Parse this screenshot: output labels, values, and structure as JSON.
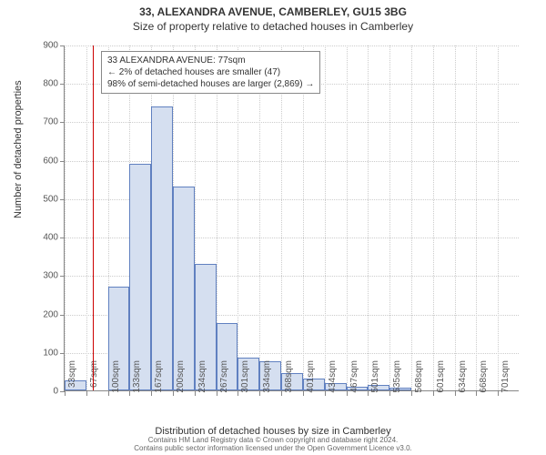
{
  "title": {
    "main": "33, ALEXANDRA AVENUE, CAMBERLEY, GU15 3BG",
    "sub": "Size of property relative to detached houses in Camberley"
  },
  "chart": {
    "type": "histogram",
    "ylim": [
      0,
      900
    ],
    "ytick_step": 100,
    "yticks": [
      0,
      100,
      200,
      300,
      400,
      500,
      600,
      700,
      800,
      900
    ],
    "xticks": [
      "33sqm",
      "67sqm",
      "100sqm",
      "133sqm",
      "167sqm",
      "200sqm",
      "234sqm",
      "267sqm",
      "301sqm",
      "334sqm",
      "368sqm",
      "401sqm",
      "434sqm",
      "467sqm",
      "501sqm",
      "535sqm",
      "568sqm",
      "601sqm",
      "634sqm",
      "668sqm",
      "701sqm"
    ],
    "values": [
      25,
      0,
      270,
      590,
      740,
      530,
      330,
      175,
      85,
      75,
      45,
      30,
      20,
      10,
      15,
      8,
      0,
      0,
      0,
      0,
      0
    ],
    "bar_color": "#d5dff0",
    "bar_border": "#6080c0",
    "grid_color": "#cccccc",
    "background_color": "#ffffff",
    "reference_line": {
      "x_index": 1.3,
      "color": "#cc0000"
    },
    "annotation": {
      "lines": [
        "33 ALEXANDRA AVENUE: 77sqm",
        "← 2% of detached houses are smaller (47)",
        "98% of semi-detached houses are larger (2,869) →"
      ]
    },
    "ylabel": "Number of detached properties",
    "xlabel": "Distribution of detached houses by size in Camberley"
  },
  "footer": {
    "line1": "Contains HM Land Registry data © Crown copyright and database right 2024.",
    "line2": "Contains public sector information licensed under the Open Government Licence v3.0."
  }
}
